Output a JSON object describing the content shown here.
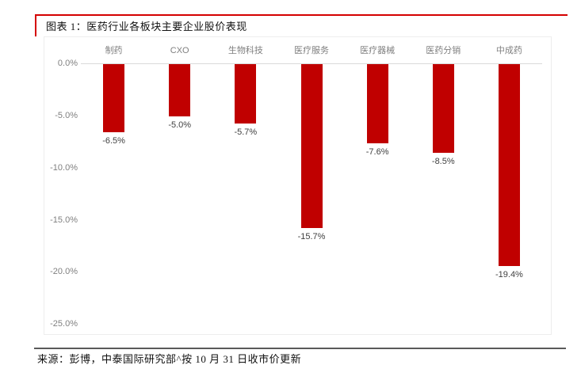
{
  "figure": {
    "title": "图表 1：医药行业各板块主要企业股价表现",
    "source": "来源：彭博，中泰国际研究部^按 10 月 31 日收市价更新"
  },
  "colors": {
    "bar": "#C00000",
    "title_rule": "#D40000",
    "axis_line": "#D9D9D9",
    "chart_border": "#EDEDED",
    "label_gray": "#7F7F7F",
    "value_gray": "#404040",
    "source_rule": "#595959"
  },
  "chart_data": {
    "type": "bar",
    "title": "医药行业各板块主要企业股价表现",
    "categories": [
      "制药",
      "CXO",
      "生物科技",
      "医疗服务",
      "医疗器械",
      "医药分销",
      "中成药"
    ],
    "values": [
      -6.5,
      -5.0,
      -5.7,
      -15.7,
      -7.6,
      -8.5,
      -19.4
    ],
    "value_labels": [
      "-6.5%",
      "-5.0%",
      "-5.7%",
      "-15.7%",
      "-7.6%",
      "-8.5%",
      "-19.4%"
    ],
    "y_ticks": [
      "0.0%",
      "-5.0%",
      "-10.0%",
      "-15.0%",
      "-20.0%",
      "-25.0%"
    ],
    "ylim": [
      -25.0,
      0.0
    ],
    "unit": "%",
    "grid": "zero-axis-only",
    "legend": "none",
    "xlabel": "",
    "ylabel": ""
  }
}
